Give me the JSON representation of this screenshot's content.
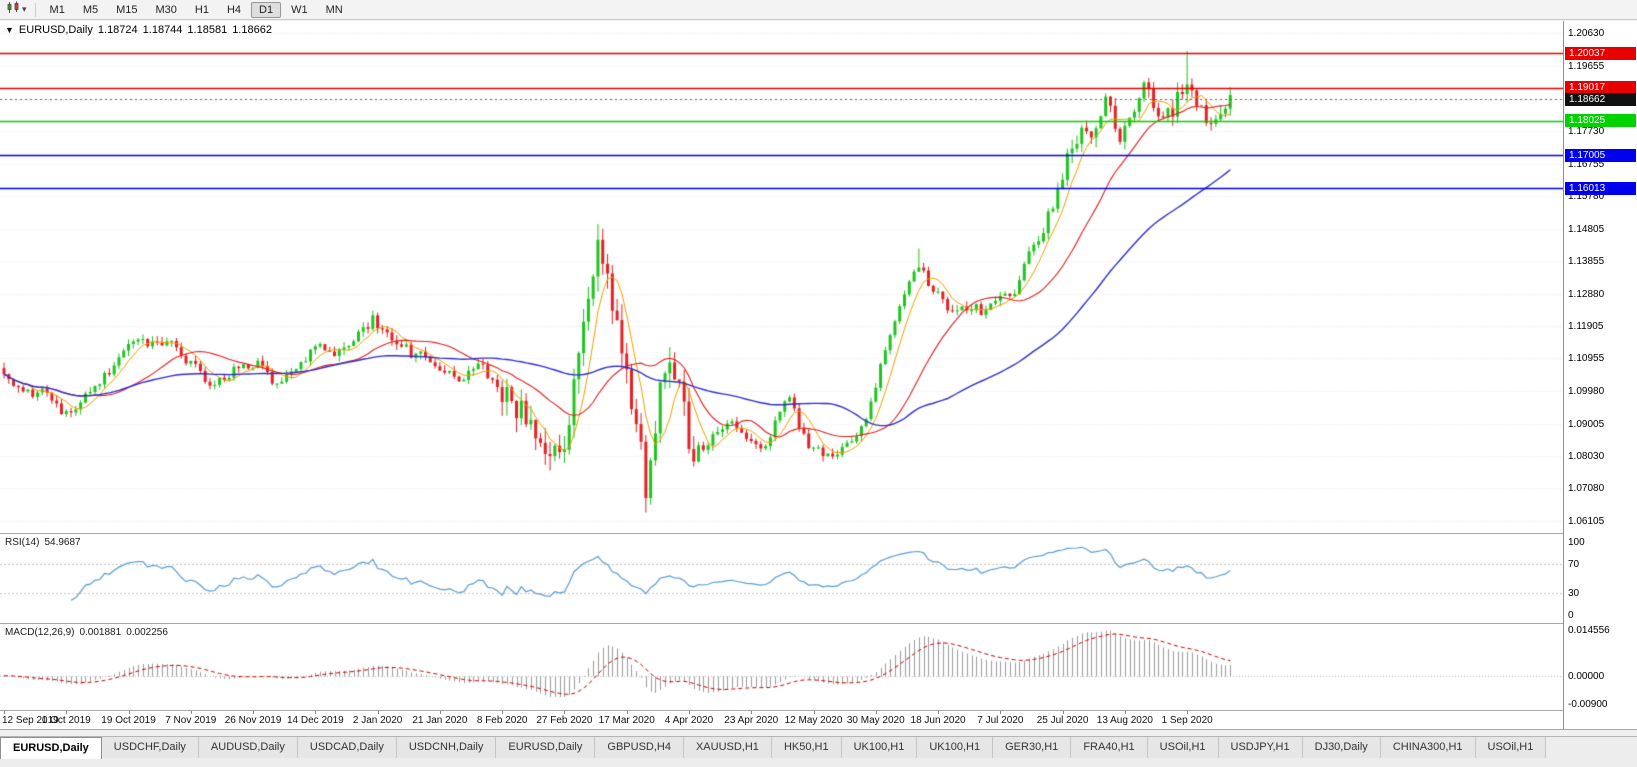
{
  "icons": {
    "collapse": "▼",
    "chart_type_caret": "▾"
  },
  "toolbar": {
    "timeframes": [
      "M1",
      "M5",
      "M15",
      "M30",
      "H1",
      "H4",
      "D1",
      "W1",
      "MN"
    ],
    "active_timeframe": "D1"
  },
  "chart": {
    "symbol_label": "EURUSD,Daily",
    "open": "1.18724",
    "high": "1.18744",
    "low": "1.18581",
    "close": "1.18662",
    "price_min": 1.0575,
    "price_max": 1.21,
    "price_axis_labels": [
      "1.20630",
      "1.19655",
      "1.18680",
      "1.17730",
      "1.16755",
      "1.15780",
      "1.14805",
      "1.13855",
      "1.12880",
      "1.11905",
      "1.10955",
      "1.09980",
      "1.09005",
      "1.08030",
      "1.07080",
      "1.06105"
    ],
    "levels": [
      {
        "label": "1.20037",
        "price": 1.20037,
        "color": "#e80000",
        "kind": "resistance-line"
      },
      {
        "label": "1.19017",
        "price": 1.19017,
        "color": "#e80000",
        "kind": "resistance-line"
      },
      {
        "label": "1.18662",
        "price": 1.18662,
        "color": "#111111",
        "kind": "current-price"
      },
      {
        "label": "1.18025",
        "price": 1.18025,
        "color": "#00d300",
        "kind": "support-line"
      },
      {
        "label": "1.17005",
        "price": 1.17005,
        "color": "#0000ee",
        "kind": "support-line"
      },
      {
        "label": "1.16013",
        "price": 1.16013,
        "color": "#0000ee",
        "kind": "support-line"
      }
    ],
    "date_labels": [
      "12 Sep 2019",
      "1 Oct 2019",
      "19 Oct 2019",
      "7 Nov 2019",
      "26 Nov 2019",
      "14 Dec 2019",
      "2 Jan 2020",
      "21 Jan 2020",
      "8 Feb 2020",
      "27 Feb 2020",
      "17 Mar 2020",
      "4 Apr 2020",
      "23 Apr 2020",
      "12 May 2020",
      "30 May 2020",
      "18 Jun 2020",
      "7 Jul 2020",
      "25 Jul 2020",
      "13 Aug 2020",
      "1 Sep 2020"
    ]
  },
  "rsi": {
    "label": "RSI(14)",
    "value": "54.9687",
    "axis_labels": [
      "100",
      "70",
      "30",
      "0"
    ],
    "level_lines": [
      70,
      30
    ],
    "line_color": "#5b9bd5"
  },
  "macd": {
    "label": "MACD(12,26,9)",
    "value_main": "0.001881",
    "value_signal": "0.002256",
    "axis_labels": [
      "0.014556",
      "0.00000",
      "-0.00900"
    ],
    "max": 0.014556,
    "min": -0.009,
    "histogram_color": "#9b9b9b",
    "signal_color": "#cc0000"
  },
  "tabs": [
    "EURUSD,Daily",
    "USDCHF,Daily",
    "AUDUSD,Daily",
    "USDCAD,Daily",
    "USDCNH,Daily",
    "EURUSD,Daily",
    "GBPUSD,H4",
    "XAUUSD,H1",
    "HK50,H1",
    "UK100,H1",
    "UK100,H1",
    "GER30,H1",
    "FRA40,H1",
    "USOil,H1",
    "USDJPY,H1",
    "DJ30,Daily",
    "CHINA300,H1",
    "USOil,H1"
  ],
  "active_tab_index": 0,
  "chart_data": {
    "type": "candlestick",
    "symbol": "EURUSD",
    "timeframe": "Daily",
    "x_range": [
      "12 Sep 2019",
      "11 Sep 2020"
    ],
    "y_range": [
      1.0575,
      1.21
    ],
    "candle_count": 257,
    "price_anchors": [
      [
        0,
        1.106
      ],
      [
        3,
        1.1005
      ],
      [
        8,
        1.099
      ],
      [
        13,
        1.093
      ],
      [
        17,
        1.0985
      ],
      [
        21,
        1.104
      ],
      [
        27,
        1.116
      ],
      [
        31,
        1.113
      ],
      [
        35,
        1.1155
      ],
      [
        39,
        1.1075
      ],
      [
        44,
        1.1015
      ],
      [
        48,
        1.106
      ],
      [
        53,
        1.1075
      ],
      [
        57,
        1.101
      ],
      [
        61,
        1.106
      ],
      [
        65,
        1.113
      ],
      [
        70,
        1.1115
      ],
      [
        75,
        1.1175
      ],
      [
        77,
        1.121
      ],
      [
        81,
        1.116
      ],
      [
        85,
        1.111
      ],
      [
        90,
        1.1085
      ],
      [
        95,
        1.1025
      ],
      [
        99,
        1.109
      ],
      [
        103,
        1.1
      ],
      [
        107,
        1.0945
      ],
      [
        110,
        1.0915
      ],
      [
        113,
        1.079
      ],
      [
        116,
        1.084
      ],
      [
        118,
        1.0885
      ],
      [
        120,
        1.1135
      ],
      [
        122,
        1.128
      ],
      [
        124,
        1.145
      ],
      [
        126,
        1.133
      ],
      [
        128,
        1.118
      ],
      [
        130,
        1.105
      ],
      [
        132,
        1.092
      ],
      [
        134,
        1.07
      ],
      [
        138,
        1.109
      ],
      [
        141,
        1.103
      ],
      [
        143,
        1.085
      ],
      [
        145,
        1.08
      ],
      [
        148,
        1.087
      ],
      [
        152,
        1.0915
      ],
      [
        155,
        1.087
      ],
      [
        159,
        1.082
      ],
      [
        162,
        1.095
      ],
      [
        164,
        1.098
      ],
      [
        166,
        1.089
      ],
      [
        168,
        1.0835
      ],
      [
        171,
        1.081
      ],
      [
        173,
        1.08
      ],
      [
        176,
        1.085
      ],
      [
        180,
        1.09
      ],
      [
        184,
        1.1135
      ],
      [
        188,
        1.129
      ],
      [
        191,
        1.137
      ],
      [
        195,
        1.128
      ],
      [
        198,
        1.122
      ],
      [
        202,
        1.125
      ],
      [
        205,
        1.1225
      ],
      [
        208,
        1.128
      ],
      [
        211,
        1.13
      ],
      [
        214,
        1.14
      ],
      [
        218,
        1.152
      ],
      [
        221,
        1.165
      ],
      [
        223,
        1.172
      ],
      [
        226,
        1.1778
      ],
      [
        227,
        1.1762
      ],
      [
        230,
        1.1877
      ],
      [
        233,
        1.174
      ],
      [
        235,
        1.181
      ],
      [
        238,
        1.1934
      ],
      [
        241,
        1.1797
      ],
      [
        244,
        1.1831
      ],
      [
        246,
        1.1903
      ],
      [
        247,
        1.1911
      ],
      [
        249,
        1.1852
      ],
      [
        252,
        1.1781
      ],
      [
        254,
        1.1815
      ],
      [
        256,
        1.1866
      ]
    ],
    "wick_extremes": [
      {
        "day": 113,
        "low": 1.0778
      },
      {
        "day": 124,
        "high": 1.1495
      },
      {
        "day": 134,
        "low": 1.0636
      },
      {
        "day": 191,
        "high": 1.1422
      },
      {
        "day": 247,
        "high": 1.2011
      }
    ],
    "moving_averages": [
      {
        "period": 6,
        "color": "#f0a000",
        "width": 1
      },
      {
        "period": 20,
        "color": "#e02020",
        "width": 1.1
      },
      {
        "period": 55,
        "color": "#3030cc",
        "width": 1.4
      }
    ],
    "colors": {
      "up": "#1fc41f",
      "down": "#e32222"
    }
  }
}
